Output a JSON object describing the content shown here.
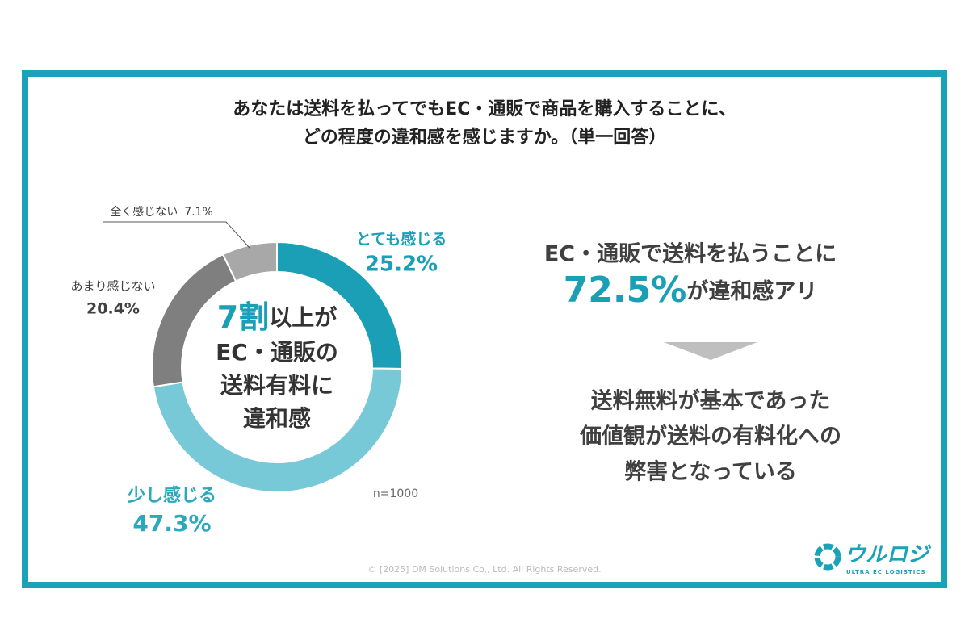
{
  "chart_data": {
    "type": "donut",
    "title": [
      "あなたは送料を払ってでもEC・通販で商品を購入することに、",
      "どの程度の違和感を感じますか。（単一回答）"
    ],
    "categories": [
      "とても感じる",
      "少し感じる",
      "あまり感じない",
      "全く感じない"
    ],
    "values": [
      25.2,
      47.3,
      20.4,
      7.1
    ],
    "value_labels": [
      "25.2%",
      "47.3%",
      "20.4%",
      "7.1%"
    ],
    "colors": [
      "#1a9fb6",
      "#78c9d7",
      "#7f7f7f",
      "#a8a8a8"
    ],
    "note": "n=1000"
  },
  "center_text": {
    "highlight": "7割",
    "rest": "以上が",
    "lines": [
      "EC・通販の",
      "送料有料に",
      "違和感"
    ]
  },
  "summary": {
    "line1": "EC・通販で送料を払うことに",
    "highlight": "72.5%",
    "line2_rest": "が違和感アリ",
    "conclusion": [
      "送料無料が基本であった",
      "価値観が送料の有料化への",
      "弊害となっている"
    ]
  },
  "footer": "© [2025] DM Solutions Co., Ltd. All Rights Reserved.",
  "logo": {
    "name": "ウルロジ",
    "tagline": "ULTRA EC LOGISTICS"
  }
}
